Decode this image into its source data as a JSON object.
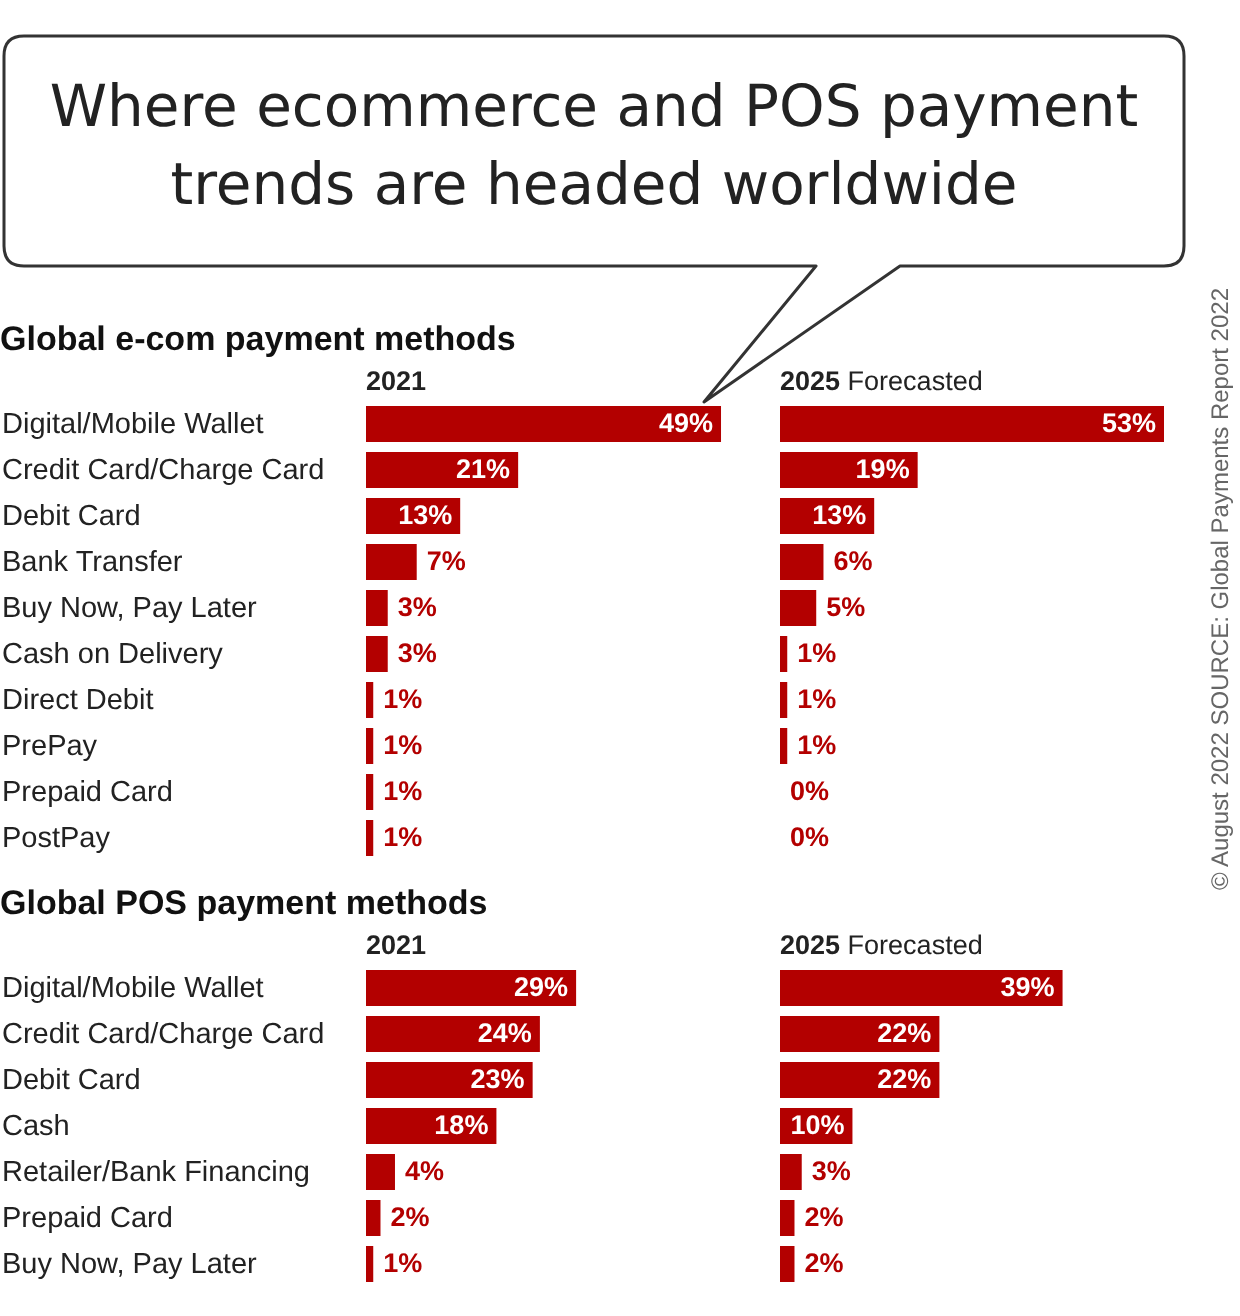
{
  "chart_data": [
    {
      "type": "bar",
      "orientation": "horizontal",
      "title": "Where ecommerce and POS payment trends are headed worldwide",
      "subtitle": "Global e-com payment methods",
      "xlabel": "2021",
      "categories": [
        "Digital/Mobile Wallet",
        "Credit Card/Charge Card",
        "Debit Card",
        "Bank Transfer",
        "Buy Now, Pay Later",
        "Cash on Delivery",
        "Direct Debit",
        "PrePay",
        "Prepaid Card",
        "PostPay"
      ],
      "values": [
        49,
        21,
        13,
        7,
        3,
        3,
        1,
        1,
        1,
        1
      ],
      "value_labels": [
        "49%",
        "21%",
        "13%",
        "7%",
        "3%",
        "3%",
        "1%",
        "1%",
        "1%",
        "1%"
      ],
      "color": "#b30000",
      "tick_labels": "y",
      "annotations": [
        "© August 2022 SOURCE: Global Payments Report 2022"
      ]
    },
    {
      "type": "bar",
      "orientation": "horizontal",
      "xlabel": "2025 Forecasted",
      "categories": [
        null,
        null,
        null,
        null,
        null,
        null,
        null,
        null,
        null,
        null
      ],
      "values": [
        53,
        19,
        13,
        6,
        5,
        1,
        1,
        1,
        0,
        0
      ],
      "value_labels": [
        "53%",
        "19%",
        "13%",
        "6%",
        "5%",
        "1%",
        "1%",
        "1%",
        "0%",
        "0%"
      ],
      "color": "#b30000",
      "tick_labels": false
    },
    {
      "type": "bar",
      "orientation": "horizontal",
      "subtitle": "Global POS payment methods",
      "xlabel": "2021",
      "categories": [
        "Digital/Mobile Wallet",
        "Credit Card/Charge Card",
        "Debit Card",
        "Cash",
        "Retailer/Bank Financing",
        "Prepaid Card",
        "Buy Now, Pay Later"
      ],
      "values": [
        29,
        24,
        23,
        18,
        4,
        2,
        1
      ],
      "value_labels": [
        "29%",
        "24%",
        "23%",
        "18%",
        "4%",
        "2%",
        "1%"
      ],
      "color": "#b30000",
      "tick_labels": "y"
    },
    {
      "type": "bar",
      "orientation": "horizontal",
      "xlabel": "2025 Forecasted",
      "categories": [
        null,
        null,
        null,
        null,
        null,
        null,
        null
      ],
      "values": [
        39,
        22,
        22,
        10,
        3,
        2,
        2
      ],
      "value_labels": [
        "39%",
        "22%",
        "22%",
        "10%",
        "3%",
        "2%",
        "2%"
      ],
      "color": "#b30000",
      "tick_labels": false
    }
  ]
}
